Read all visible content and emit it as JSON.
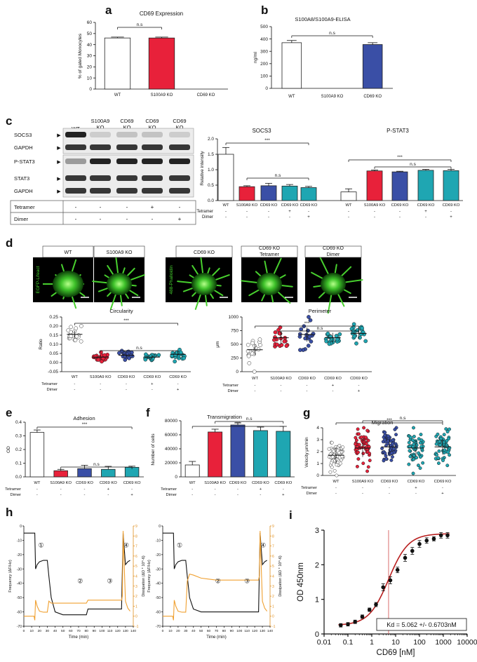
{
  "panel_letters": {
    "a": "a",
    "b": "b",
    "c": "c",
    "d": "d",
    "e": "e",
    "f": "f",
    "g": "g",
    "h": "h",
    "i": "i"
  },
  "colors": {
    "wt": "#ffffff",
    "s100a9": "#e8213a",
    "cd69": "#3a4fa6",
    "tetramer": "#1fa6b2",
    "dimer": "#1fa6b2",
    "sig": "#000000",
    "kd_line": "#d04a4a",
    "freq": "#111111",
    "diss": "#f0a030"
  },
  "kos": [
    "WT",
    "S100A9 KO",
    "CD69 KO",
    "CD69 KO",
    "CD69 KO"
  ],
  "treat_rows": {
    "tetramer_label": "Tetramer",
    "dimer_label": "Dimer",
    "tetramer": [
      "-",
      "-",
      "-",
      "+",
      "-"
    ],
    "dimer": [
      "-",
      "-",
      "-",
      "-",
      "+"
    ]
  },
  "sig": {
    "ns": "n.s",
    "stars": "***"
  },
  "blot": {
    "lane_headers": [
      "WT",
      "S100A9\nKO",
      "CD69\nKO",
      "CD69\nKO",
      "CD69\nKO"
    ],
    "rows": [
      "SOCS3",
      "GAPDH",
      "P-STAT3",
      "STAT3",
      "GAPDH"
    ],
    "arrow": "▶"
  },
  "micro": {
    "group1": [
      "WT",
      "S100A9 KO"
    ],
    "group2": [
      "CD69 KO",
      "CD69 KO\nTetramer",
      "CD69 KO\nDimer"
    ],
    "stain1": "EGFP-Lifeact",
    "stain2": "488-Phalloidin"
  },
  "chart_data": [
    {
      "panel": "a",
      "type": "bar",
      "title": "CD69 Expression",
      "ylabel": "% of gated Monocytes",
      "categories": [
        "WT",
        "S100A9 KO",
        "CD69 KO"
      ],
      "values": [
        46,
        46,
        0
      ],
      "errors": [
        0.8,
        0.8,
        0
      ],
      "ylim": [
        0,
        60
      ],
      "yticks": [
        0,
        10,
        20,
        30,
        40,
        50,
        60
      ]
    },
    {
      "panel": "b",
      "type": "bar",
      "title": "S100A8/S100A9-ELISA",
      "ylabel": "ng/ml",
      "categories": [
        "WT",
        "S100A9 KO",
        "CD69 KO"
      ],
      "values": [
        370,
        0,
        355
      ],
      "errors": [
        18,
        0,
        15
      ],
      "ylim": [
        0,
        500
      ],
      "yticks": [
        0,
        100,
        200,
        300,
        400,
        500
      ]
    },
    {
      "panel": "c-socs3",
      "type": "bar",
      "title": "SOCS3",
      "ylabel": "Relative intensity",
      "categories": [
        "WT",
        "S100A9 KO",
        "CD69 KO",
        "CD69 KO",
        "CD69 KO"
      ],
      "values": [
        1.5,
        0.45,
        0.48,
        0.47,
        0.42
      ],
      "errors": [
        0.22,
        0.03,
        0.08,
        0.05,
        0.04
      ],
      "ylim": [
        0,
        2.0
      ],
      "yticks": [
        0.0,
        0.5,
        1.0,
        1.5,
        2.0
      ]
    },
    {
      "panel": "c-pstat3",
      "type": "bar",
      "title": "P-STAT3",
      "categories": [
        "WT",
        "S100A9 KO",
        "CD69 KO",
        "CD69 KO",
        "CD69 KO"
      ],
      "values": [
        0.28,
        0.96,
        0.93,
        0.98,
        0.97
      ],
      "errors": [
        0.1,
        0.03,
        0.02,
        0.03,
        0.04
      ],
      "ylim": [
        0,
        2.0
      ]
    },
    {
      "panel": "d-circularity",
      "type": "scatter",
      "title": "Circularity",
      "ylabel": "Ratio",
      "categories": [
        "WT",
        "S100A9 KO",
        "CD69 KO",
        "CD69 KO",
        "CD69 KO"
      ],
      "means": [
        0.155,
        0.03,
        0.04,
        0.03,
        0.045
      ],
      "sds": [
        0.02,
        0.012,
        0.012,
        0.01,
        0.015
      ],
      "n": 20,
      "ylim": [
        -0.05,
        0.25
      ],
      "yticks": [
        -0.05,
        0.0,
        0.05,
        0.1,
        0.15,
        0.2,
        0.25
      ]
    },
    {
      "panel": "d-perimeter",
      "type": "scatter",
      "title": "Perimeter",
      "ylabel": "μm",
      "categories": [
        "WT",
        "S100A9 KO",
        "CD69 KO",
        "CD69 KO",
        "CD69 KO"
      ],
      "means": [
        400,
        620,
        680,
        620,
        700
      ],
      "sds": [
        100,
        120,
        130,
        90,
        100
      ],
      "n": 20,
      "ylim": [
        0,
        1000
      ],
      "yticks": [
        0,
        250,
        500,
        750,
        1000
      ]
    },
    {
      "panel": "e",
      "type": "bar",
      "title": "Adhesion",
      "ylabel": "OD",
      "categories": [
        "WT",
        "S100A9 KO",
        "CD69 KO",
        "CD69 KO",
        "CD69 KO"
      ],
      "values": [
        0.325,
        0.045,
        0.06,
        0.055,
        0.07
      ],
      "errors": [
        0.018,
        0.01,
        0.025,
        0.022,
        0.008
      ],
      "ylim": [
        0,
        0.4
      ],
      "yticks": [
        0.0,
        0.1,
        0.2,
        0.3,
        0.4
      ]
    },
    {
      "panel": "f",
      "type": "bar",
      "title": "Transmigration",
      "ylabel": "Number of cells",
      "categories": [
        "WT",
        "S100A9 KO",
        "CD69 KO",
        "CD69 KO",
        "CD69 KO"
      ],
      "values": [
        17000,
        64000,
        74000,
        66000,
        65000
      ],
      "errors": [
        5000,
        4000,
        3000,
        5000,
        7000
      ],
      "ylim": [
        0,
        80000
      ],
      "yticks": [
        0,
        20000,
        40000,
        60000,
        80000
      ]
    },
    {
      "panel": "g",
      "type": "scatter",
      "title": "Migration",
      "ylabel": "Velocity μm/min",
      "categories": [
        "WT",
        "S100A9 KO",
        "CD69 KO",
        "CD69 KO",
        "CD69 KO"
      ],
      "means": [
        1.7,
        2.3,
        2.4,
        2.3,
        2.4
      ],
      "sds": [
        0.7,
        0.75,
        0.7,
        0.7,
        0.65
      ],
      "n": 60,
      "ylim": [
        0,
        4
      ],
      "yticks": [
        0,
        1,
        2,
        3,
        4
      ]
    },
    {
      "panel": "h",
      "type": "line",
      "subplots": 2,
      "xlabel": "Time (min)",
      "ylabel_left": "Frequency (ΔF/Hz)",
      "ylabel_right": "Dissipation (ΔD * 10^-6)",
      "xlim": [
        0,
        140
      ],
      "xticks": [
        0,
        10,
        20,
        30,
        40,
        50,
        60,
        70,
        80,
        90,
        100,
        110,
        120,
        130,
        140
      ],
      "ylim_left": [
        -70,
        0
      ],
      "yticks_left": [
        -70,
        -60,
        -50,
        -40,
        -30,
        -20,
        -10,
        0
      ],
      "ylim_right": [
        -1,
        9
      ],
      "yticks_right": [
        -1,
        0,
        1,
        2,
        3,
        4,
        5,
        6,
        7,
        8,
        9
      ],
      "markers": [
        "①",
        "②",
        "③",
        "④"
      ],
      "series": [
        {
          "name": "Frequency",
          "plot": 1,
          "x": [
            0,
            2,
            4,
            6,
            8,
            10,
            12,
            14,
            15,
            17,
            20,
            25,
            28,
            30,
            32,
            35,
            40,
            50,
            60,
            70,
            80,
            82,
            85,
            90,
            100,
            110,
            120,
            125,
            127,
            130,
            133,
            136
          ],
          "y": [
            -5,
            -5,
            -5,
            -5,
            -5,
            -5,
            -5,
            -5,
            -30,
            -27,
            -25,
            -24,
            -24,
            -24,
            -35,
            -50,
            -60,
            -62,
            -62,
            -62,
            -62,
            -58,
            -58,
            -58,
            -58,
            -58,
            -58,
            -58,
            -5,
            -27,
            -25,
            -24
          ]
        },
        {
          "name": "Dissipation",
          "plot": 1,
          "x": [
            0,
            5,
            10,
            13,
            14,
            15,
            17,
            20,
            25,
            28,
            30,
            32,
            35,
            40,
            50,
            60,
            70,
            80,
            82,
            85,
            90,
            100,
            110,
            120,
            125,
            126,
            127,
            128,
            130,
            133,
            136
          ],
          "y": [
            0,
            0,
            0,
            0,
            -0.4,
            1.6,
            1.0,
            0.5,
            0.4,
            0.4,
            0.4,
            1.5,
            1.3,
            1.3,
            1.3,
            1.3,
            1.3,
            1.3,
            1.6,
            1.6,
            1.6,
            1.6,
            1.6,
            1.6,
            1.6,
            2,
            8.5,
            6,
            1.5,
            0.8,
            0.5
          ]
        },
        {
          "name": "Frequency",
          "plot": 2,
          "x": [
            0,
            5,
            10,
            14,
            15,
            17,
            20,
            25,
            28,
            30,
            32,
            35,
            40,
            50,
            60,
            70,
            80,
            90,
            100,
            110,
            120,
            125,
            127,
            130,
            133,
            136
          ],
          "y": [
            -5,
            -5,
            -5,
            -5,
            -30,
            -27,
            -25,
            -24,
            -24,
            -24,
            -35,
            -50,
            -58,
            -60,
            -60,
            -60,
            -60,
            -60,
            -60,
            -60,
            -60,
            -60,
            -5,
            -27,
            -25,
            -24
          ]
        },
        {
          "name": "Dissipation",
          "plot": 2,
          "x": [
            0,
            5,
            10,
            13,
            14,
            15,
            17,
            20,
            25,
            28,
            30,
            32,
            35,
            40,
            50,
            60,
            70,
            80,
            90,
            100,
            110,
            120,
            125,
            126,
            127,
            128,
            130,
            133,
            136
          ],
          "y": [
            0,
            0,
            0,
            0,
            -0.4,
            1.6,
            1.0,
            0.5,
            0.4,
            0.4,
            0.4,
            3.5,
            4.2,
            4.1,
            3.8,
            3.7,
            3.6,
            3.6,
            3.6,
            3.6,
            3.6,
            3.6,
            3.6,
            4,
            8.5,
            6,
            1.5,
            0.8,
            0.5
          ]
        }
      ]
    },
    {
      "panel": "i",
      "type": "scatter",
      "xscale": "log",
      "xlabel": "CD69 [nM]",
      "ylabel": "OD 450nm",
      "xlim": [
        0.01,
        10000
      ],
      "xticks": [
        0.01,
        0.1,
        1,
        10,
        100,
        1000,
        10000
      ],
      "xticklabels": [
        "0.01",
        "0.1",
        "1",
        "10",
        "100",
        "1000",
        "10000"
      ],
      "ylim": [
        0,
        3
      ],
      "yticks": [
        0,
        1,
        2,
        3
      ],
      "kd_text": "Kd = 5.062 +/- 0.6703nM",
      "kd": 5.062,
      "x": [
        0.05,
        0.1,
        0.2,
        0.4,
        0.8,
        1.5,
        3,
        6,
        12,
        25,
        50,
        100,
        200,
        400,
        800,
        1500
      ],
      "y": [
        0.25,
        0.28,
        0.35,
        0.5,
        0.7,
        0.85,
        1.35,
        1.55,
        1.85,
        2.2,
        2.4,
        2.6,
        2.7,
        2.75,
        2.85,
        2.85
      ],
      "errors": [
        0.05,
        0.05,
        0.05,
        0.05,
        0.05,
        0.06,
        0.1,
        0.1,
        0.08,
        0.1,
        0.1,
        0.1,
        0.08,
        0.06,
        0.08,
        0.08
      ]
    }
  ]
}
